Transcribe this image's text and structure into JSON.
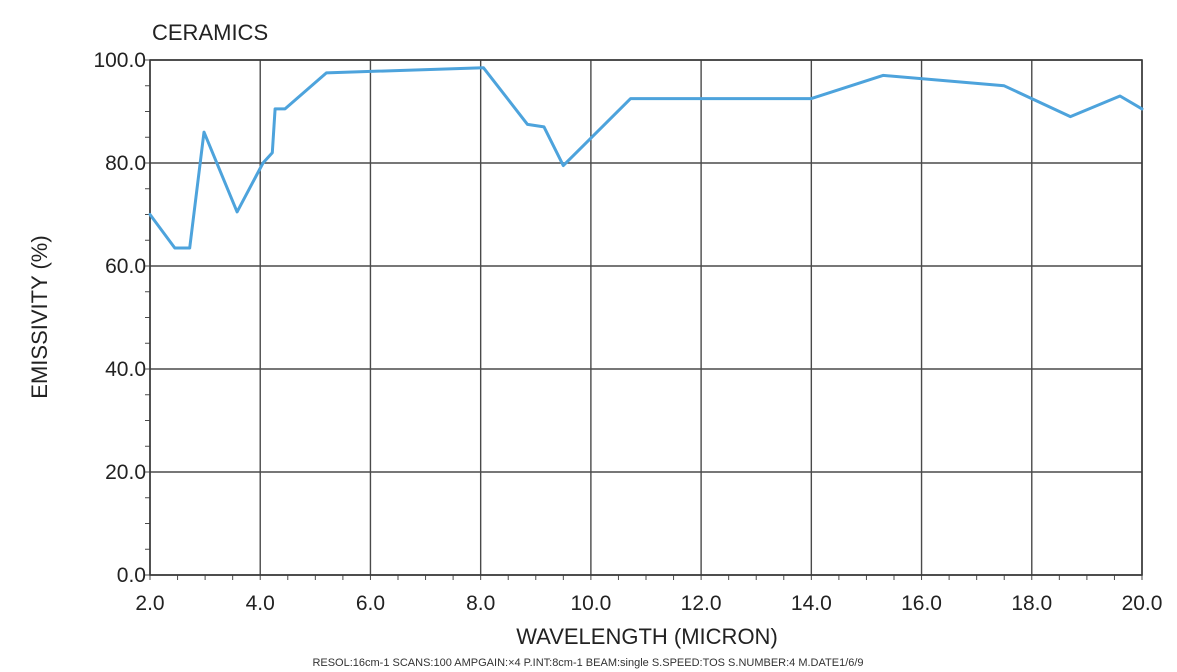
{
  "chart_data": {
    "type": "line",
    "title": "CERAMICS",
    "xlabel": "WAVELENGTH (MICRON)",
    "ylabel": "EMISSIVITY (%)",
    "xlim": [
      2.0,
      20.0
    ],
    "ylim": [
      0.0,
      100.0
    ],
    "x_ticks": [
      "2.0",
      "4.0",
      "6.0",
      "8.0",
      "10.0",
      "12.0",
      "14.0",
      "16.0",
      "18.0",
      "20.0"
    ],
    "y_ticks": [
      "0.0",
      "20.0",
      "40.0",
      "60.0",
      "80.0",
      "100.0"
    ],
    "grid": true,
    "series": [
      {
        "color": "#4da3dc",
        "x": [
          2.0,
          2.45,
          2.72,
          2.98,
          3.58,
          4.05,
          4.22,
          4.27,
          4.45,
          5.2,
          8.05,
          8.85,
          9.15,
          9.5,
          10.72,
          14.0,
          15.3,
          17.5,
          18.7,
          19.6,
          20.0
        ],
        "y": [
          70.0,
          63.5,
          63.5,
          86.0,
          70.5,
          80.0,
          82.0,
          90.5,
          90.5,
          97.5,
          98.5,
          87.5,
          87.0,
          79.5,
          92.5,
          92.5,
          97.0,
          95.0,
          89.0,
          93.0,
          90.5
        ]
      }
    ]
  },
  "footer_note": "RESOL:16cm-1 SCANS:100 AMPGAIN:×4 P.INT:8cm-1 BEAM:single S.SPEED:TOS S.NUMBER:4 M.DATE1/6/9"
}
